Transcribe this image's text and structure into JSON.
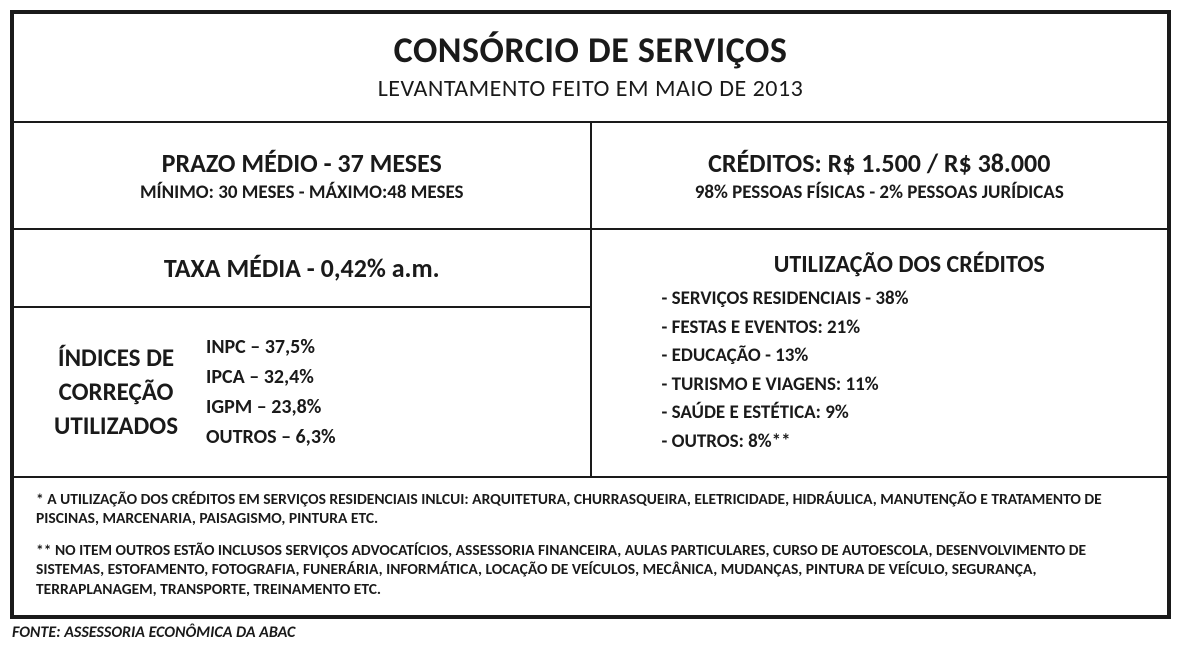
{
  "header": {
    "title": "CONSÓRCIO DE SERVIÇOS",
    "subtitle": "LEVANTAMENTO FEITO EM MAIO DE 2013"
  },
  "prazo": {
    "title": "PRAZO MÉDIO - 37 MESES",
    "sub": "MÍNIMO: 30 MESES - MÁXIMO:48 MESES"
  },
  "creditos": {
    "title": "CRÉDITOS: R$ 1.500 / R$ 38.000",
    "sub": "98% PESSOAS FÍSICAS - 2% PESSOAS JURÍDICAS"
  },
  "taxa": {
    "title": "TAXA MÉDIA - 0,42% a.m."
  },
  "indices": {
    "title_l1": "ÍNDICES DE",
    "title_l2": "CORREÇÃO",
    "title_l3": "UTILIZADOS",
    "items": [
      "INPC – 37,5%",
      "IPCA – 32,4%",
      "IGPM – 23,8%",
      "OUTROS – 6,3%"
    ]
  },
  "utilizacao": {
    "title": "UTILIZAÇÃO DOS CRÉDITOS",
    "items": [
      "- SERVIÇOS RESIDENCIAIS - 38%",
      "- FESTAS E EVENTOS: 21%",
      "- EDUCAÇÃO - 13%",
      "- TURISMO E VIAGENS: 11%",
      "- SAÚDE E ESTÉTICA: 9%",
      "- OUTROS: 8%**"
    ]
  },
  "footnotes": {
    "n1": "* A UTILIZAÇÃO DOS CRÉDITOS EM SERVIÇOS RESIDENCIAIS INLCUI: ARQUITETURA, CHURRASQUEIRA, ELETRICIDADE, HIDRÁULICA, MANUTENÇÃO E TRATAMENTO DE PISCINAS, MARCENARIA, PAISAGISMO, PINTURA ETC.",
    "n2": "** NO ITEM OUTROS ESTÃO INCLUSOS SERVIÇOS ADVOCATÍCIOS, ASSESSORIA FINANCEIRA, AULAS PARTICULARES, CURSO DE AUTOESCOLA, DESENVOLVIMENTO DE SISTEMAS, ESTOFAMENTO, FOTOGRAFIA, FUNERÁRIA, INFORMÁTICA, LOCAÇÃO DE VEÍCULOS, MECÂNICA, MUDANÇAS, PINTURA DE VEÍCULO, SEGURANÇA, TERRAPLANAGEM, TRANSPORTE, TREINAMENTO ETC."
  },
  "source": "FONTE: ASSESSORIA ECONÔMICA DA ABAC"
}
